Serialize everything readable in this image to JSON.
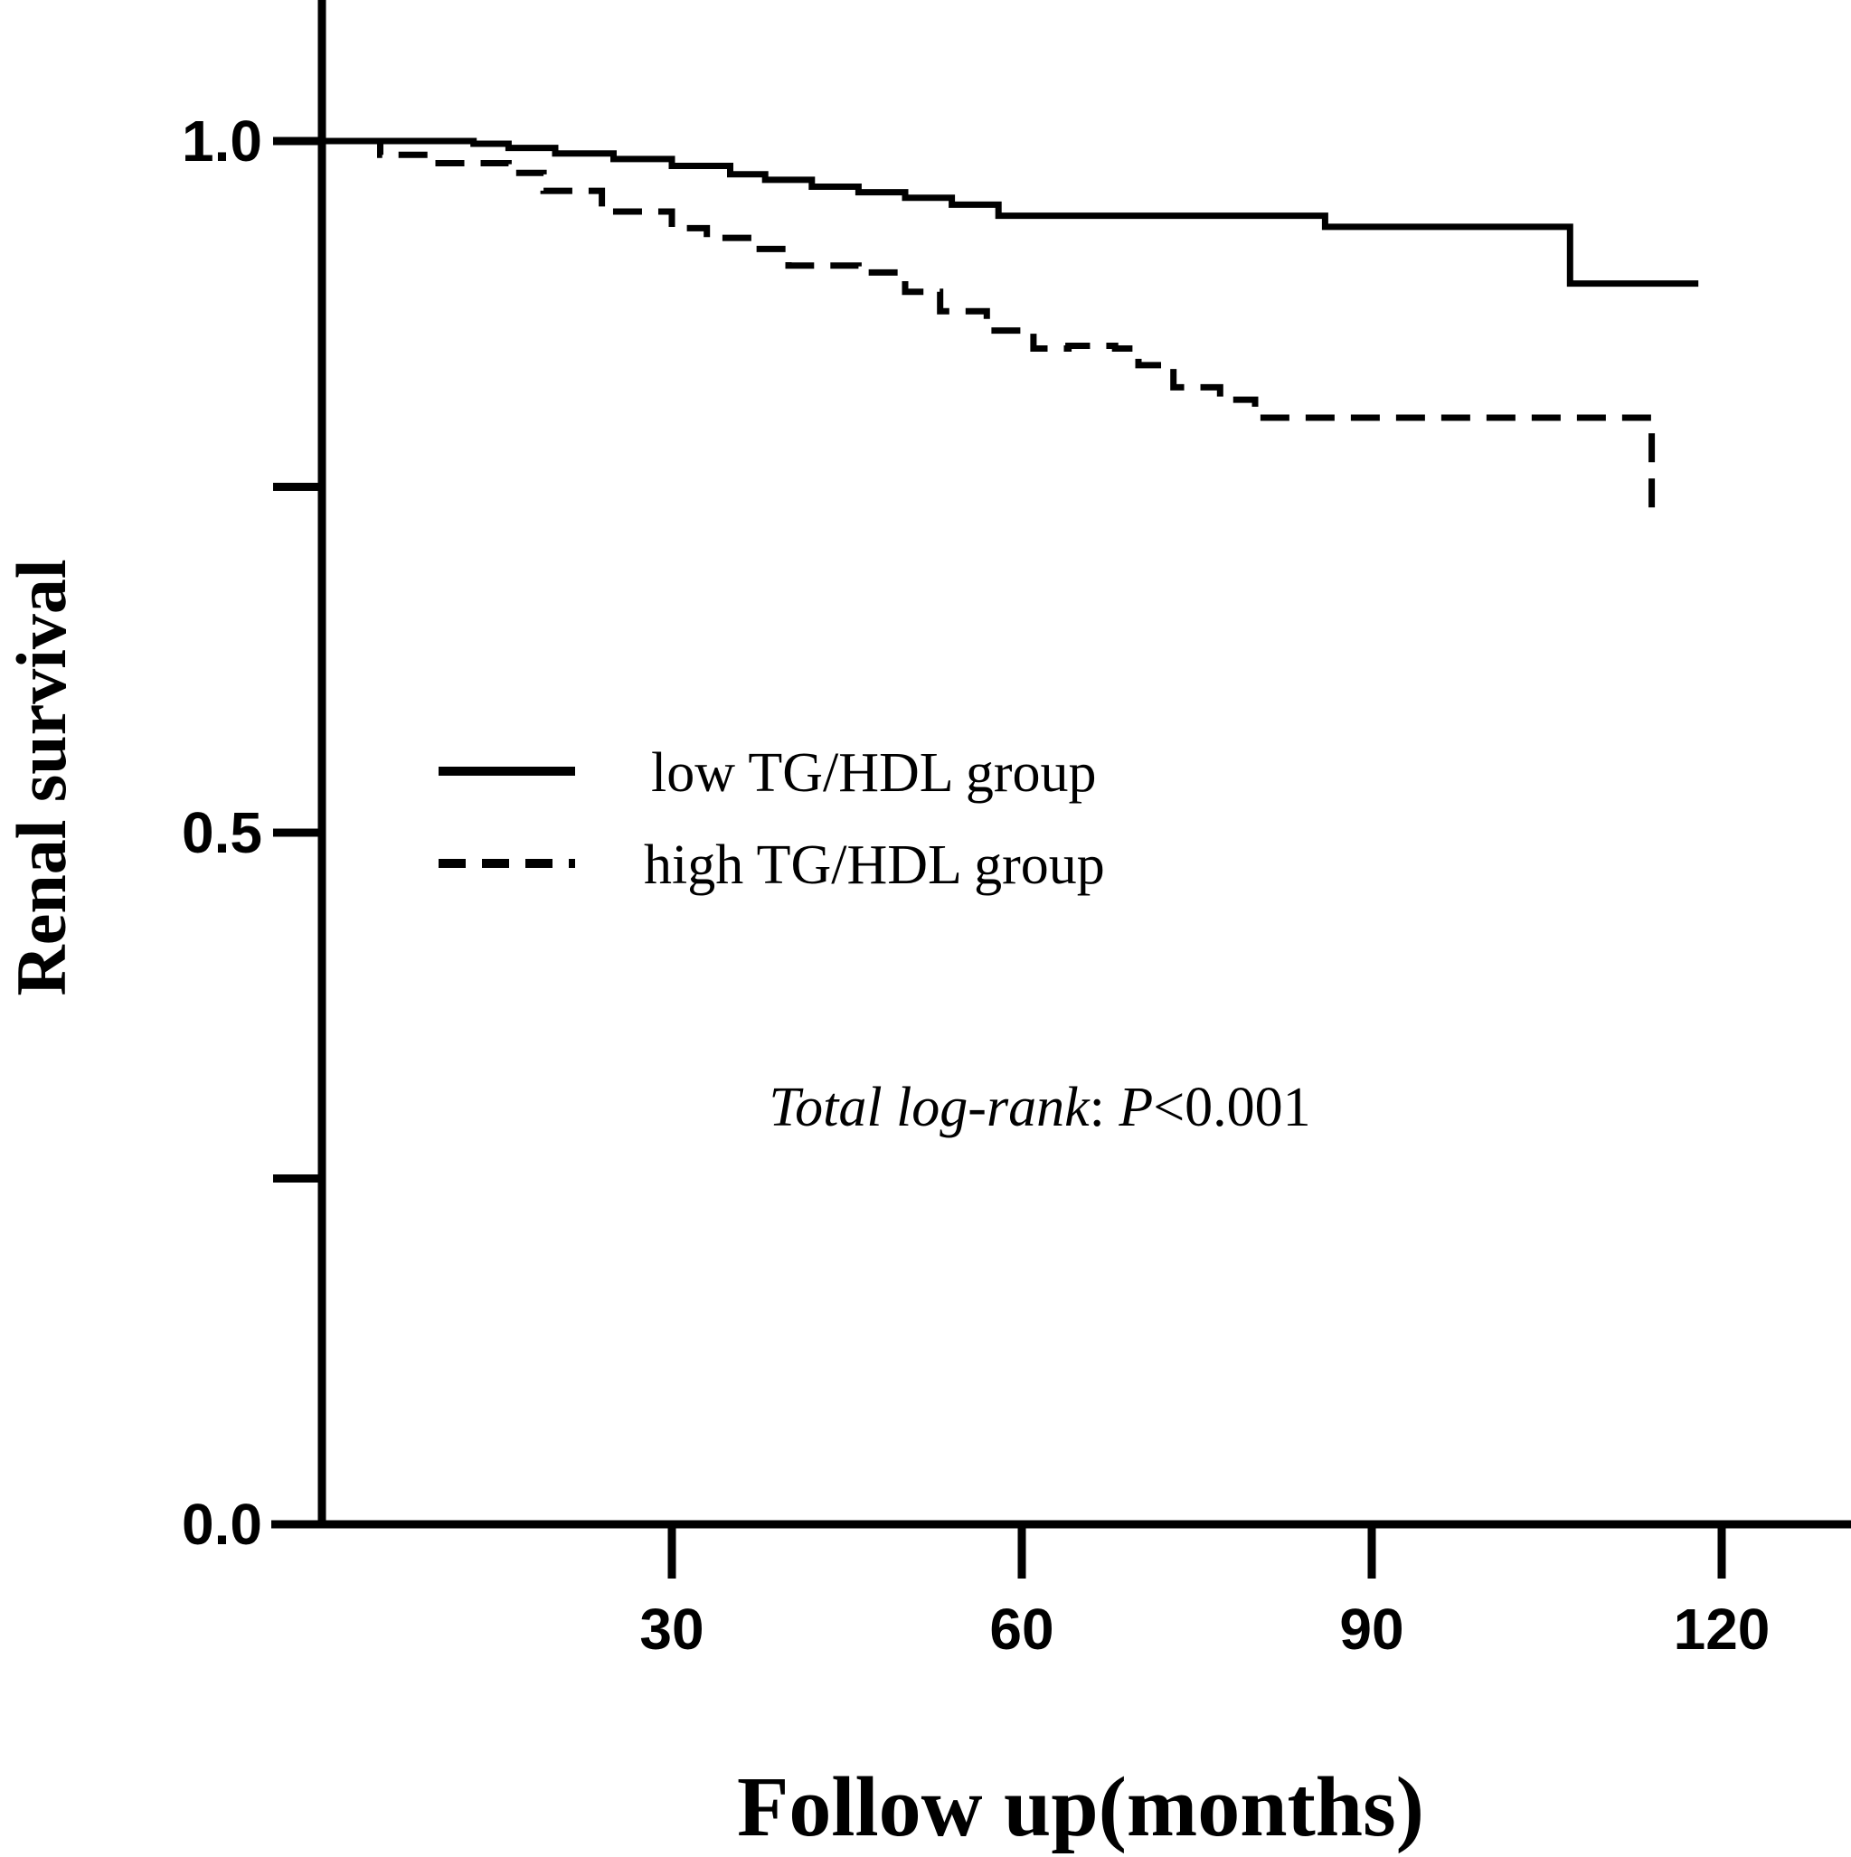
{
  "chart_data": {
    "type": "line",
    "xlabel": "Follow up(months)",
    "ylabel": "Renal survival",
    "xlim": [
      0,
      127
    ],
    "ylim": [
      0,
      1.1
    ],
    "x_ticks": [
      30,
      60,
      90,
      120
    ],
    "y_ticks": [
      0.0,
      0.25,
      0.5,
      0.75,
      1.0
    ],
    "y_tick_labels": [
      "0.0",
      "",
      "0.5",
      "",
      "1.0"
    ],
    "grid": false,
    "legend_position": "center-left",
    "series": [
      {
        "name": "low TG/HDL group",
        "style": "solid",
        "x": [
          0,
          13,
          16,
          20,
          25,
          30,
          35,
          38,
          42,
          46,
          50,
          54,
          58,
          86,
          107,
          118
        ],
        "y": [
          1.0,
          0.998,
          0.995,
          0.991,
          0.987,
          0.982,
          0.976,
          0.972,
          0.967,
          0.963,
          0.959,
          0.954,
          0.946,
          0.938,
          0.897,
          0.897
        ]
      },
      {
        "name": "high TG/HDL group",
        "style": "dashed",
        "x": [
          0,
          5,
          10,
          16,
          19,
          24,
          30,
          33,
          37,
          40,
          46,
          50,
          53,
          57,
          61,
          64,
          68,
          70,
          73,
          77,
          80,
          82,
          86,
          103,
          114
        ],
        "y": [
          1.0,
          0.99,
          0.984,
          0.977,
          0.964,
          0.949,
          0.937,
          0.93,
          0.922,
          0.91,
          0.905,
          0.891,
          0.877,
          0.863,
          0.85,
          0.852,
          0.85,
          0.838,
          0.822,
          0.813,
          0.8,
          0.8,
          0.8,
          0.8,
          0.73
        ]
      }
    ],
    "annotation": {
      "italic_part": "Total log-rank",
      "sep": ": ",
      "p_symbol": "P",
      "p_rest": "<0.001"
    }
  }
}
